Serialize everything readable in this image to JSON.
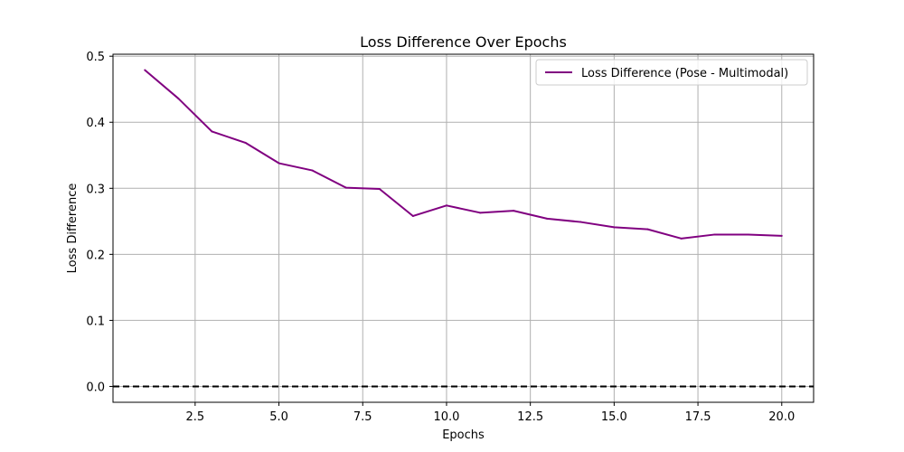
{
  "chart_data": {
    "type": "line",
    "title": "Loss Difference Over Epochs",
    "xlabel": "Epochs",
    "ylabel": "Loss Difference",
    "xlim": [
      0.05,
      20.95
    ],
    "ylim": [
      -0.024,
      0.503
    ],
    "xticks": [
      2.5,
      5.0,
      7.5,
      10.0,
      12.5,
      15.0,
      17.5,
      20.0
    ],
    "xtick_labels": [
      "2.5",
      "5.0",
      "7.5",
      "10.0",
      "12.5",
      "15.0",
      "17.5",
      "20.0"
    ],
    "yticks": [
      0.0,
      0.1,
      0.2,
      0.3,
      0.4,
      0.5
    ],
    "ytick_labels": [
      "0.0",
      "0.1",
      "0.2",
      "0.3",
      "0.4",
      "0.5"
    ],
    "grid": true,
    "legend_position": "top-right",
    "series": [
      {
        "name": "Loss Difference (Pose - Multimodal)",
        "color": "#800080",
        "x": [
          1,
          2,
          3,
          4,
          5,
          6,
          7,
          8,
          9,
          10,
          11,
          12,
          13,
          14,
          15,
          16,
          17,
          18,
          19,
          20
        ],
        "values": [
          0.479,
          0.436,
          0.386,
          0.369,
          0.338,
          0.327,
          0.301,
          0.299,
          0.258,
          0.274,
          0.263,
          0.266,
          0.254,
          0.249,
          0.241,
          0.238,
          0.224,
          0.23,
          0.23,
          0.228
        ]
      }
    ],
    "reference_line": {
      "y": 0.0,
      "color": "#000000",
      "style": "dashed"
    }
  }
}
